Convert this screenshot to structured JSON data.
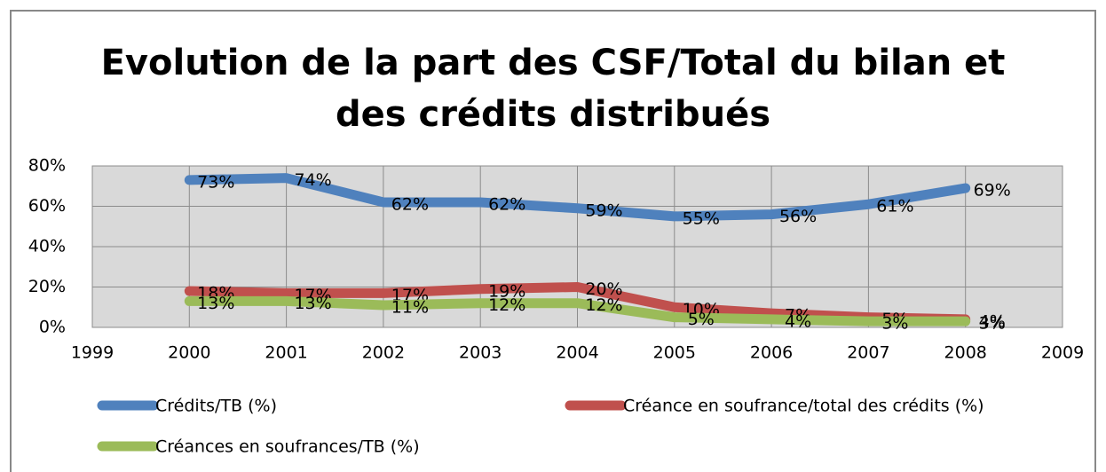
{
  "chart_data": {
    "type": "line",
    "title": "Evolution de la part des CSF/Total du bilan et des crédits distribués",
    "x": [
      2000,
      2001,
      2002,
      2003,
      2004,
      2005,
      2006,
      2007,
      2008
    ],
    "xlim": [
      1999,
      2009
    ],
    "xticks": [
      1999,
      2000,
      2001,
      2002,
      2003,
      2004,
      2005,
      2006,
      2007,
      2008,
      2009
    ],
    "ylim": [
      0,
      80
    ],
    "yticks": [
      {
        "value": 0,
        "label": "0%"
      },
      {
        "value": 20,
        "label": "20%"
      },
      {
        "value": 40,
        "label": "40%"
      },
      {
        "value": 60,
        "label": "60%"
      },
      {
        "value": 80,
        "label": "80%"
      }
    ],
    "grid": true,
    "legend": "bottom",
    "series": [
      {
        "name": "Crédits/TB (%)",
        "color": "#4f81bd",
        "values": [
          73,
          74,
          62,
          62,
          59,
          55,
          56,
          61,
          69
        ],
        "value_labels": [
          "73%",
          "74%",
          "62%",
          "62%",
          "59%",
          "55%",
          "56%",
          "61%",
          "69%"
        ]
      },
      {
        "name": "Créance en soufrance/total des crédits (%)",
        "color": "#c0504d",
        "values": [
          18,
          17,
          17,
          19,
          20,
          10,
          7,
          5,
          4
        ],
        "value_labels": [
          "18%",
          "17%",
          "17%",
          "19%",
          "20%",
          "10%",
          "7%",
          "5%",
          "4%"
        ]
      },
      {
        "name": "Créances en soufrances/TB (%)",
        "color": "#9bbb59",
        "values": [
          13,
          13,
          11,
          12,
          12,
          5,
          4,
          3,
          3
        ],
        "value_labels": [
          "13%",
          "13%",
          "11%",
          "12%",
          "12%",
          "5%",
          "4%",
          "3%",
          "3%"
        ]
      }
    ]
  }
}
